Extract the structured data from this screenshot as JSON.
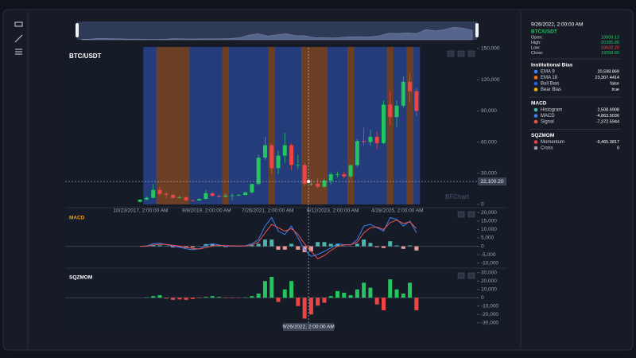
{
  "chart_data": [
    {
      "type": "candlestick",
      "title": "BTC/USDT",
      "watermark": "BFChart",
      "xlim": [
        0,
        43
      ],
      "xticks": [
        {
          "value": 0.6,
          "label": "10/23/2017, 2:00:00 AM"
        },
        {
          "value": 10.6,
          "label": "9/9/2019, 2:00:00 AM"
        },
        {
          "value": 19.9,
          "label": "7/26/2021, 2:00:00 AM"
        },
        {
          "value": 29.8,
          "label": "6/12/2023, 2:00:00 AM"
        },
        {
          "value": 39.6,
          "label": "4/28/2025, 2:00:00 AM"
        }
      ],
      "ylim": [
        0,
        150000
      ],
      "yticks": [
        0,
        {
          "value": 30000,
          "label": "30,000"
        },
        {
          "value": 60000,
          "label": "60,000"
        },
        {
          "value": 90000,
          "label": "90,000"
        },
        {
          "value": 120000,
          "label": "120,000"
        },
        {
          "value": 150000,
          "label": "150,000"
        }
      ],
      "open": [
        2500,
        4700,
        6400,
        14000,
        10200,
        9200,
        6300,
        7000,
        4000,
        3800,
        5300,
        10800,
        8300,
        7400,
        8600,
        8700,
        9100,
        11600,
        19700,
        45000,
        57000,
        35000,
        47000,
        57000,
        38000,
        38000,
        20000,
        20000,
        17000,
        23000,
        29000,
        29000,
        27000,
        37800,
        61000,
        60000,
        65000,
        59000,
        96000,
        84000,
        95000,
        118000,
        109000
      ],
      "high": [
        5000,
        7500,
        19500,
        17000,
        11700,
        10000,
        8500,
        7400,
        4500,
        5800,
        13800,
        12300,
        9500,
        10500,
        10500,
        10000,
        12400,
        19900,
        48000,
        64800,
        59000,
        52000,
        69000,
        59000,
        48000,
        40000,
        24000,
        25000,
        25000,
        31000,
        31800,
        31800,
        38500,
        63000,
        73700,
        72000,
        70000,
        99800,
        109000,
        100000,
        123000,
        126000,
        112000
      ],
      "low": [
        1900,
        4200,
        5900,
        9000,
        6500,
        5800,
        5800,
        3200,
        3300,
        3600,
        5100,
        7400,
        6500,
        6500,
        3900,
        8400,
        9000,
        10600,
        18500,
        43000,
        30000,
        29000,
        40000,
        33000,
        34000,
        17600,
        17600,
        15500,
        16000,
        19500,
        26000,
        25000,
        24800,
        36000,
        56500,
        56500,
        53500,
        58000,
        76000,
        74500,
        93000,
        98000,
        85000
      ],
      "close": [
        4700,
        6400,
        14000,
        10200,
        9200,
        6300,
        7000,
        4000,
        3800,
        5300,
        10800,
        8300,
        7400,
        8600,
        8700,
        9100,
        11600,
        19700,
        45000,
        57000,
        35000,
        47000,
        57000,
        38000,
        38000,
        20000,
        20000,
        17000,
        23000,
        29000,
        29000,
        27000,
        37800,
        61000,
        60000,
        65000,
        59000,
        96000,
        84000,
        95000,
        118000,
        109000,
        90000
      ],
      "up_color": "#22c55e",
      "down_color": "#ef4444",
      "bull_bias": [
        null,
        true,
        true,
        false,
        false,
        false,
        false,
        false,
        true,
        true,
        true,
        true,
        true,
        false,
        true,
        true,
        true,
        true,
        true,
        true,
        false,
        true,
        true,
        true,
        true,
        false,
        false,
        false,
        false,
        true,
        true,
        true,
        false,
        true,
        true,
        true,
        true,
        true,
        false,
        true,
        true,
        false,
        true
      ],
      "bull_color": "#27428a",
      "bear_color": "#7b4526",
      "crosshair": {
        "x": 26.1,
        "x_label": "9/26/2022, 2:00:00 AM",
        "y": {
          "value": 22100.2,
          "label": "22,100.20"
        }
      },
      "readout": [
        {
          "label": "Open:",
          "value": "18808.13",
          "color": "#22c55e"
        },
        {
          "label": "High:",
          "value": "20385.86",
          "color": "#22c55e"
        },
        {
          "label": "Low:",
          "value": "18632.20",
          "color": "#ef4444"
        },
        {
          "label": "Close:",
          "value": "19058.80",
          "color": "#22c55e"
        }
      ],
      "indicators_title": "Institutional Bias",
      "indicators": [
        {
          "name": "EMA 9",
          "color": "#3b82f6",
          "readout": "20,598.869"
        },
        {
          "name": "EMA 18",
          "color": "#f97316",
          "readout": "23,307.4414"
        },
        {
          "name": "Bull Bias",
          "color": "#2563eb",
          "readout": "false"
        },
        {
          "name": "Bear Bias",
          "color": "#eab308",
          "readout": "true"
        }
      ]
    },
    {
      "type": "macd",
      "title": "MACD",
      "title_color": "#f59e0b",
      "ylim": [
        -12000,
        22000
      ],
      "yticks": [
        {
          "value": -10000,
          "label": "-10,000"
        },
        {
          "value": -5000,
          "label": "-5,000"
        },
        0,
        {
          "value": 5000,
          "label": "5,000"
        },
        {
          "value": 10000,
          "label": "10,000"
        },
        {
          "value": 15000,
          "label": "15,000"
        },
        {
          "value": 20000,
          "label": "20,000"
        }
      ],
      "series": [
        {
          "name": "Histogram",
          "color": "#4db6ac",
          "down_color": "#ef9a9a",
          "readout": "2,508.6908",
          "values": [
            0,
            100,
            800,
            600,
            -100,
            -600,
            -600,
            -900,
            -700,
            100,
            1300,
            1300,
            200,
            -400,
            -100,
            -100,
            50,
            700,
            1500,
            4000,
            4000,
            -2000,
            -2000,
            1500,
            -2000,
            -3500,
            -3000,
            2509,
            2500,
            1500,
            1500,
            200,
            -100,
            1500,
            4000,
            2000,
            -500,
            -1000,
            3000,
            500,
            -1500,
            500,
            -2500
          ]
        },
        {
          "name": "MACD",
          "color": "#3b82f6",
          "readout": "-4,863.5036",
          "values": [
            0,
            200,
            1500,
            1800,
            1000,
            0,
            -500,
            -1500,
            -2000,
            -1500,
            500,
            1500,
            800,
            0,
            200,
            100,
            300,
            1500,
            4000,
            12000,
            17000,
            9000,
            7000,
            12000,
            5000,
            -2000,
            -6000,
            -4863,
            -3000,
            -1000,
            1500,
            1000,
            800,
            4000,
            12000,
            13000,
            11000,
            9000,
            17000,
            16000,
            12000,
            15000,
            8000
          ]
        },
        {
          "name": "Signal",
          "color": "#ef5350",
          "readout": "-7,372.5944",
          "values": [
            0,
            100,
            700,
            1200,
            1100,
            600,
            100,
            -600,
            -1300,
            -1600,
            -800,
            200,
            600,
            400,
            300,
            200,
            250,
            800,
            2500,
            8000,
            13000,
            11000,
            9000,
            10500,
            7000,
            1500,
            -3000,
            -7372,
            -5500,
            -2500,
            0,
            800,
            900,
            2500,
            8000,
            11000,
            11500,
            10000,
            14000,
            15500,
            13500,
            14500,
            10500
          ]
        }
      ]
    },
    {
      "type": "squeeze",
      "title": "SQZMOM",
      "title_color": "#ffffff",
      "ylim": [
        -35000,
        35000
      ],
      "yticks": [
        {
          "value": -30000,
          "label": "-30,000"
        },
        {
          "value": -20000,
          "label": "-20,000"
        },
        {
          "value": -10000,
          "label": "-10,000"
        },
        0,
        {
          "value": 10000,
          "label": "10,000"
        },
        {
          "value": 20000,
          "label": "20,000"
        },
        {
          "value": 30000,
          "label": "30,000"
        }
      ],
      "series": [
        {
          "name": "Momentum",
          "color": "#ef4444",
          "up_color": "#22c55e",
          "readout": "-9,465.3817",
          "values": [
            0,
            500,
            2000,
            3000,
            -1000,
            -2500,
            -2000,
            -2500,
            -1500,
            -500,
            1000,
            2000,
            1000,
            -500,
            -500,
            -300,
            500,
            2000,
            5000,
            20000,
            25000,
            -5000,
            10000,
            20000,
            -10000,
            -25000,
            -20000,
            -9465,
            -6000,
            2000,
            8000,
            6000,
            3000,
            10000,
            18000,
            12000,
            -8000,
            -15000,
            22000,
            10000,
            5000,
            18000,
            -15000
          ]
        },
        {
          "name": "Cross",
          "color": "#9ca3af",
          "readout": "0"
        }
      ]
    }
  ]
}
